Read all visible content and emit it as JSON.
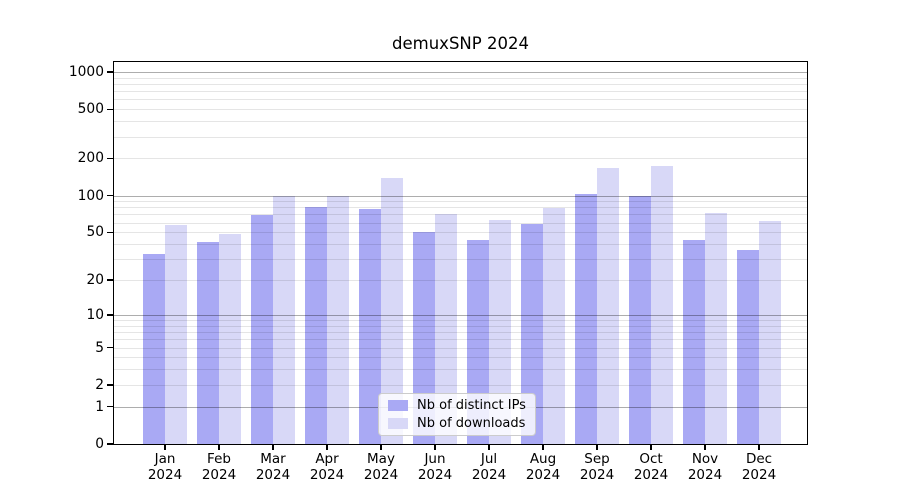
{
  "chart_data": {
    "type": "bar",
    "title": "demuxSNP 2024",
    "x_year": "2024",
    "categories": [
      "Jan",
      "Feb",
      "Mar",
      "Apr",
      "May",
      "Jun",
      "Jul",
      "Aug",
      "Sep",
      "Oct",
      "Nov",
      "Dec"
    ],
    "series": [
      {
        "id": "distinct-ips",
        "name": "Nb of distinct IPs",
        "color": "#a9a9f4",
        "values": [
          33,
          42,
          70,
          81,
          78,
          50,
          43,
          58,
          103,
          100,
          43,
          36
        ]
      },
      {
        "id": "downloads",
        "name": "Nb of downloads",
        "color": "#d8d8f7",
        "values": [
          57,
          48,
          100,
          100,
          139,
          71,
          63,
          79,
          168,
          174,
          72,
          62
        ]
      }
    ],
    "yscale": "log1p",
    "ylim": [
      0,
      1205
    ],
    "yticks": [
      1000,
      500,
      200,
      100,
      50,
      20,
      10,
      5,
      2,
      1,
      0
    ],
    "ytick_labels": [
      "1000",
      "500",
      "200",
      "100",
      "50",
      "20",
      "10",
      "5",
      "2",
      "1",
      "0"
    ],
    "grid": true,
    "legend_position": "lower center"
  },
  "colors": {
    "spine": "#000000",
    "major_grid": "rgba(0,0,0,0.32)",
    "minor_grid": "rgba(0,0,0,0.10)",
    "background": "#ffffff"
  }
}
